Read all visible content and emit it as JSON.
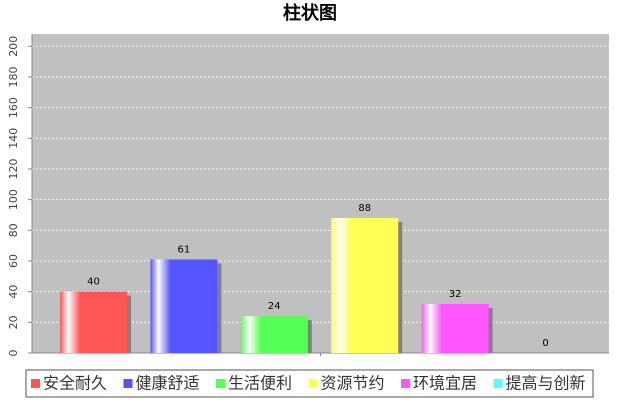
{
  "chart_data": {
    "type": "bar",
    "title": "柱状图",
    "categories": [
      "安全耐久",
      "健康舒适",
      "生活便利",
      "资源节约",
      "环境宜居",
      "提高与创新"
    ],
    "values": [
      40,
      61,
      24,
      88,
      32,
      0
    ],
    "colors": [
      "#ff5555",
      "#5555ff",
      "#55ff55",
      "#ffff55",
      "#ff55ff",
      "#55ffff"
    ],
    "ylim": [
      0,
      208
    ],
    "yticks": [
      0,
      20,
      40,
      60,
      80,
      100,
      120,
      140,
      160,
      180,
      200
    ],
    "grid": true
  }
}
